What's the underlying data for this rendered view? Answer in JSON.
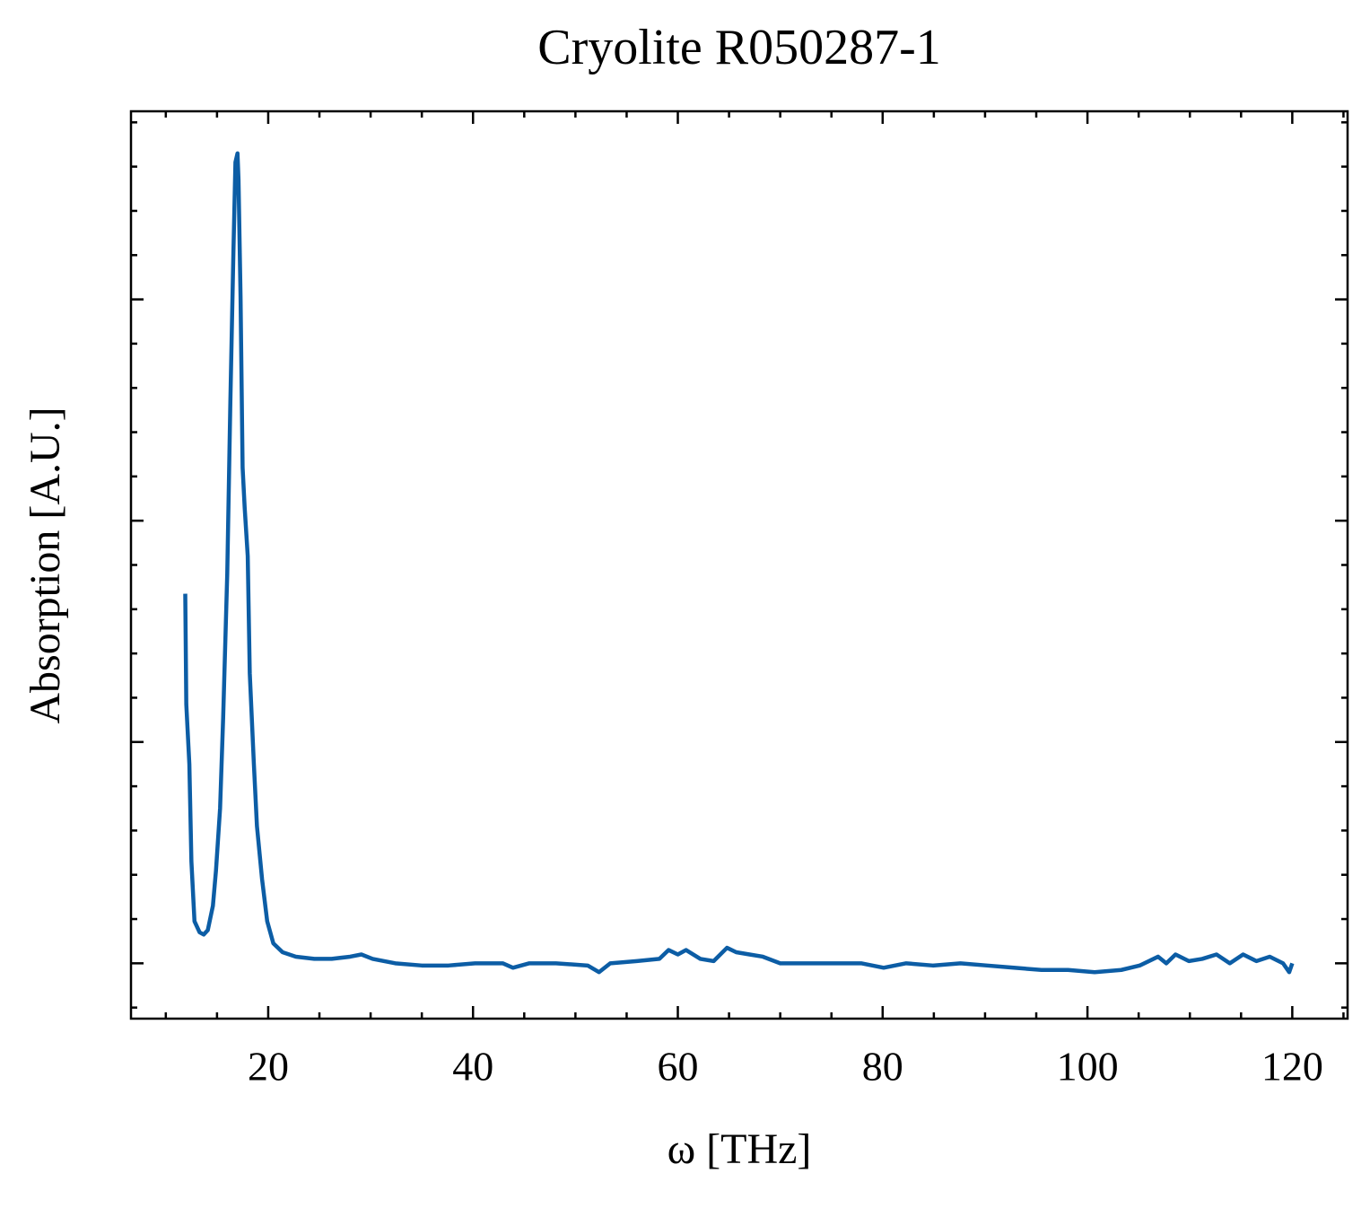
{
  "chart_data": {
    "type": "line",
    "title": "Cryolite R050287-1",
    "x_label": "ω [THz]",
    "y_label": "Absorption [A.U.]",
    "xlim": [
      6.6,
      125.4
    ],
    "ylim": [
      -0.25,
      3.85
    ],
    "xticks": [
      20,
      40,
      60,
      80,
      100,
      120
    ],
    "yticks": [
      0,
      1,
      2,
      3
    ],
    "ytick_labels": false,
    "xminorticks": [
      10,
      15,
      25,
      30,
      35,
      45,
      50,
      55,
      65,
      70,
      75,
      85,
      90,
      95,
      105,
      110,
      115,
      125
    ],
    "yminorticks": [
      -0.2,
      0.2,
      0.4,
      0.6,
      0.8,
      1.2,
      1.4,
      1.6,
      1.8,
      2.2,
      2.4,
      2.6,
      2.8,
      3.2,
      3.4,
      3.6,
      3.8
    ],
    "series": [
      {
        "color": "#0c5da5",
        "x": [
          11.9,
          12.0,
          12.3,
          12.5,
          12.8,
          13.3,
          13.7,
          14.1,
          14.6,
          14.9,
          15.3,
          15.6,
          16.0,
          16.3,
          16.6,
          16.8,
          17.0,
          17.1,
          17.3,
          17.5,
          17.7,
          18.0,
          18.2,
          18.6,
          18.9,
          19.4,
          19.9,
          20.5,
          21.4,
          22.7,
          24.5,
          26.2,
          28.0,
          29.1,
          30.2,
          32.4,
          35.0,
          37.6,
          40.2,
          42.9,
          43.9,
          45.5,
          48.1,
          51.2,
          52.3,
          53.4,
          56.0,
          58.2,
          59.1,
          60.0,
          60.8,
          62.2,
          63.5,
          64.8,
          65.7,
          67.0,
          68.3,
          70.0,
          72.7,
          75.3,
          77.9,
          80.1,
          82.3,
          84.9,
          87.6,
          90.2,
          92.8,
          95.5,
          98.1,
          100.7,
          103.3,
          105.1,
          106.9,
          107.7,
          108.6,
          109.9,
          111.2,
          112.6,
          113.9,
          115.2,
          116.5,
          117.8,
          119.1,
          119.7,
          120.0
        ],
        "values": [
          1.67,
          1.17,
          0.9,
          0.46,
          0.19,
          0.14,
          0.13,
          0.15,
          0.26,
          0.42,
          0.7,
          1.11,
          1.76,
          2.53,
          3.21,
          3.62,
          3.66,
          3.54,
          3.01,
          2.24,
          2.06,
          1.84,
          1.31,
          0.9,
          0.62,
          0.38,
          0.19,
          0.09,
          0.05,
          0.03,
          0.02,
          0.02,
          0.03,
          0.04,
          0.02,
          0,
          -0.01,
          -0.01,
          0,
          0,
          -0.02,
          0,
          0,
          -0.01,
          -0.04,
          0,
          0.01,
          0.02,
          0.06,
          0.04,
          0.06,
          0.02,
          0.01,
          0.07,
          0.05,
          0.04,
          0.03,
          0,
          0,
          0,
          0,
          -0.02,
          0,
          -0.01,
          0,
          -0.01,
          -0.02,
          -0.03,
          -0.03,
          -0.04,
          -0.03,
          -0.01,
          0.03,
          0,
          0.04,
          0.01,
          0.02,
          0.04,
          0,
          0.04,
          0.01,
          0.03,
          0,
          -0.04,
          0
        ]
      }
    ]
  }
}
